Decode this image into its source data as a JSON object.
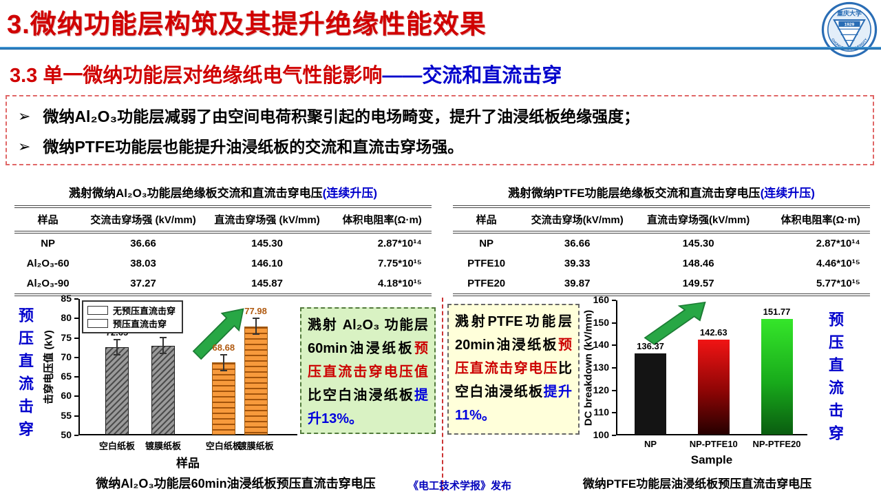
{
  "header": {
    "title": "3.微纳功能层构筑及其提升绝缘性能效果",
    "logo": {
      "line1": "重庆大学",
      "year": "1929",
      "line2": "CHONGQING UNIVERSITY"
    }
  },
  "subtitle": {
    "red": "3.3 单一微纳功能层对绝缘纸电气性能影响",
    "blue": "——交流和直流击穿"
  },
  "bullet_marker": "➢",
  "bullets": [
    "微纳Al₂O₃功能层减弱了由空间电荷积聚引起的电场畸变，提升了油浸纸板绝缘强度；",
    "微纳PTFE功能层也能提升油浸纸板的交流和直流击穿场强。"
  ],
  "tables": {
    "left": {
      "title_black": "溅射微纳Al₂O₃功能层绝缘板交流和直流击穿电压",
      "title_blue": "(连续升压)",
      "headers": [
        "样品",
        "交流击穿场强 (kV/mm)",
        "直流击穿场强 (kV/mm)",
        "体积电阻率(Ω·m)"
      ],
      "rows": [
        [
          "NP",
          "36.66",
          "145.30",
          "2.87*10¹⁴"
        ],
        [
          "Al₂O₃-60",
          "38.03",
          "146.10",
          "7.75*10¹⁵"
        ],
        [
          "Al₂O₃-90",
          "37.27",
          "145.87",
          "4.18*10¹⁵"
        ]
      ]
    },
    "right": {
      "title_black": "溅射微纳PTFE功能层绝缘板交流和直流击穿电压",
      "title_blue": "(连续升压)",
      "headers": [
        "样品",
        "交流击穿场(kV/mm)",
        "直流击穿场强(kV/mm)",
        "体积电阻率(Ω·m)"
      ],
      "rows": [
        [
          "NP",
          "36.66",
          "145.30",
          "2.87*10¹⁴"
        ],
        [
          "PTFE10",
          "39.33",
          "148.46",
          "4.46*10¹⁵"
        ],
        [
          "PTFE20",
          "39.87",
          "149.57",
          "5.77*10¹⁵"
        ]
      ]
    }
  },
  "side_labels": {
    "left": "预压直流击穿",
    "right": "预压直流击穿"
  },
  "notes": {
    "left": {
      "segments": [
        {
          "text": "溅射 Al₂O₃ 功能层60min油浸纸板",
          "color": "#000000"
        },
        {
          "text": "预压直流击穿电压值",
          "color": "#cc0000"
        },
        {
          "text": "比空白油浸纸板",
          "color": "#000000"
        },
        {
          "text": "提升13%。",
          "color": "#0000dd"
        }
      ]
    },
    "right": {
      "segments": [
        {
          "text": "溅射PTFE功能层20min油浸纸板",
          "color": "#000000"
        },
        {
          "text": "预压直流击穿电压",
          "color": "#cc0000"
        },
        {
          "text": "比空白油浸纸板",
          "color": "#000000"
        },
        {
          "text": "提升11%。",
          "color": "#0000dd"
        }
      ]
    }
  },
  "captions": {
    "left": "微纳Al₂O₃功能层60min油浸纸板预压直流击穿电压",
    "center": "《电工技术学报》发布",
    "right": "微纳PTFE功能层油浸纸板预压直流击穿电压"
  },
  "colors": {
    "accent_red": "#d00000",
    "accent_blue": "#0000cc",
    "rule_blue": "#2e82c6",
    "arrow_green": "#28a745",
    "note_green_bg": "#d9f2c3",
    "note_yellow_bg": "#ffffda",
    "bar_gray": "#9a9a9a",
    "bar_orange": "#f79a3c"
  },
  "chart_data": [
    {
      "id": "al2o3_prestressed_dc_breakdown",
      "type": "bar",
      "title": "",
      "ylabel": "击穿电压值 (kV)",
      "xlabel": "样品",
      "ylim": [
        50,
        85
      ],
      "yticks": [
        50,
        55,
        60,
        65,
        70,
        75,
        80,
        85
      ],
      "categories": [
        "空白纸板",
        "镀膜纸板",
        "空白纸板",
        "镀膜纸板"
      ],
      "values": [
        72.65,
        73.05,
        68.68,
        77.98
      ],
      "value_labels": [
        "72.65",
        "73.05",
        "68.68",
        "77.98"
      ],
      "series": [
        {
          "name": "无预压直流击穿",
          "values": [
            72.65,
            73.05,
            null,
            null
          ]
        },
        {
          "name": "预压直流击穿",
          "values": [
            null,
            null,
            68.68,
            77.98
          ]
        }
      ],
      "legend": [
        "无预压直流击穿",
        "预压直流击穿"
      ],
      "legend_styles": [
        "gray-hatch",
        "orange-hatch"
      ],
      "legend_position": "top-left",
      "error_bar": 2.0,
      "bar_centers": [
        0.176,
        0.387,
        0.663,
        0.81
      ],
      "bar_styles": [
        "gray-hatch",
        "gray-hatch",
        "orange-hatch",
        "orange-hatch"
      ],
      "label_colors": [
        "#000000",
        "#000000",
        "#b05a10",
        "#b05a10"
      ],
      "grid": false
    },
    {
      "id": "ptfe_dc_breakdown",
      "type": "bar",
      "title": "",
      "ylabel": "DC breakdown (kV/mm)",
      "xlabel": "Sample",
      "ylim": [
        100,
        160
      ],
      "yticks": [
        100,
        110,
        120,
        130,
        140,
        150,
        160
      ],
      "categories": [
        "NP",
        "NP-PTFE10",
        "NP-PTFE20"
      ],
      "values": [
        136.37,
        142.63,
        151.77
      ],
      "value_labels": [
        "136.37",
        "142.63",
        "151.77"
      ],
      "bar_centers": [
        0.18,
        0.51,
        0.84
      ],
      "bar_styles": [
        "black-solid",
        "red-gradient",
        "green-gradient"
      ],
      "label_colors": [
        "#000000",
        "#000000",
        "#000000"
      ],
      "grid": false
    }
  ]
}
